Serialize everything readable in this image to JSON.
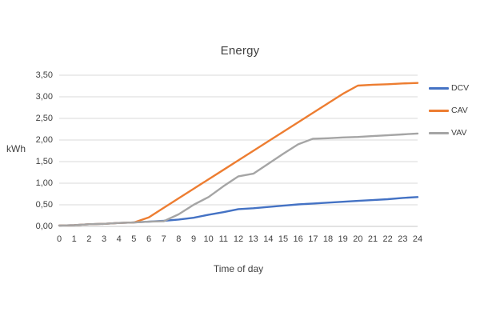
{
  "chart_data": {
    "type": "line",
    "title": "Energy",
    "xlabel": "Time of day",
    "ylabel": "kWh",
    "xlim": [
      0,
      24
    ],
    "ylim": [
      0,
      3.5
    ],
    "grid": "horizontal-only",
    "legend_position": "right",
    "gridline_color": "#D9D9D9",
    "axis_line_color": "#C6C6C6",
    "text_color": "#404040",
    "y_tick_labels": [
      "0,00",
      "0,50",
      "1,00",
      "1,50",
      "2,00",
      "2,50",
      "3,00",
      "3,50"
    ],
    "x_ticks": [
      0,
      1,
      2,
      3,
      4,
      5,
      6,
      7,
      8,
      9,
      10,
      11,
      12,
      13,
      14,
      15,
      16,
      17,
      18,
      19,
      20,
      21,
      22,
      23,
      24
    ],
    "x": [
      0,
      1,
      2,
      3,
      4,
      5,
      6,
      7,
      8,
      9,
      10,
      11,
      12,
      13,
      14,
      15,
      16,
      17,
      18,
      19,
      20,
      21,
      22,
      23,
      24
    ],
    "series": [
      {
        "name": "DCV",
        "color": "#4472C4",
        "values": [
          0.02,
          0.03,
          0.05,
          0.06,
          0.08,
          0.09,
          0.11,
          0.13,
          0.16,
          0.2,
          0.27,
          0.33,
          0.4,
          0.42,
          0.45,
          0.48,
          0.51,
          0.53,
          0.55,
          0.57,
          0.59,
          0.61,
          0.63,
          0.66,
          0.68
        ]
      },
      {
        "name": "CAV",
        "color": "#ED7D31",
        "values": [
          0.02,
          0.03,
          0.05,
          0.06,
          0.08,
          0.09,
          0.21,
          0.43,
          0.65,
          0.87,
          1.09,
          1.31,
          1.53,
          1.75,
          1.97,
          2.19,
          2.41,
          2.63,
          2.85,
          3.07,
          3.26,
          3.28,
          3.29,
          3.31,
          3.32
        ]
      },
      {
        "name": "VAV",
        "color": "#A5A5A5",
        "values": [
          0.02,
          0.03,
          0.05,
          0.06,
          0.08,
          0.09,
          0.11,
          0.12,
          0.28,
          0.5,
          0.68,
          0.93,
          1.16,
          1.22,
          1.45,
          1.68,
          1.9,
          2.03,
          2.04,
          2.06,
          2.07,
          2.09,
          2.11,
          2.13,
          2.15
        ]
      }
    ]
  }
}
